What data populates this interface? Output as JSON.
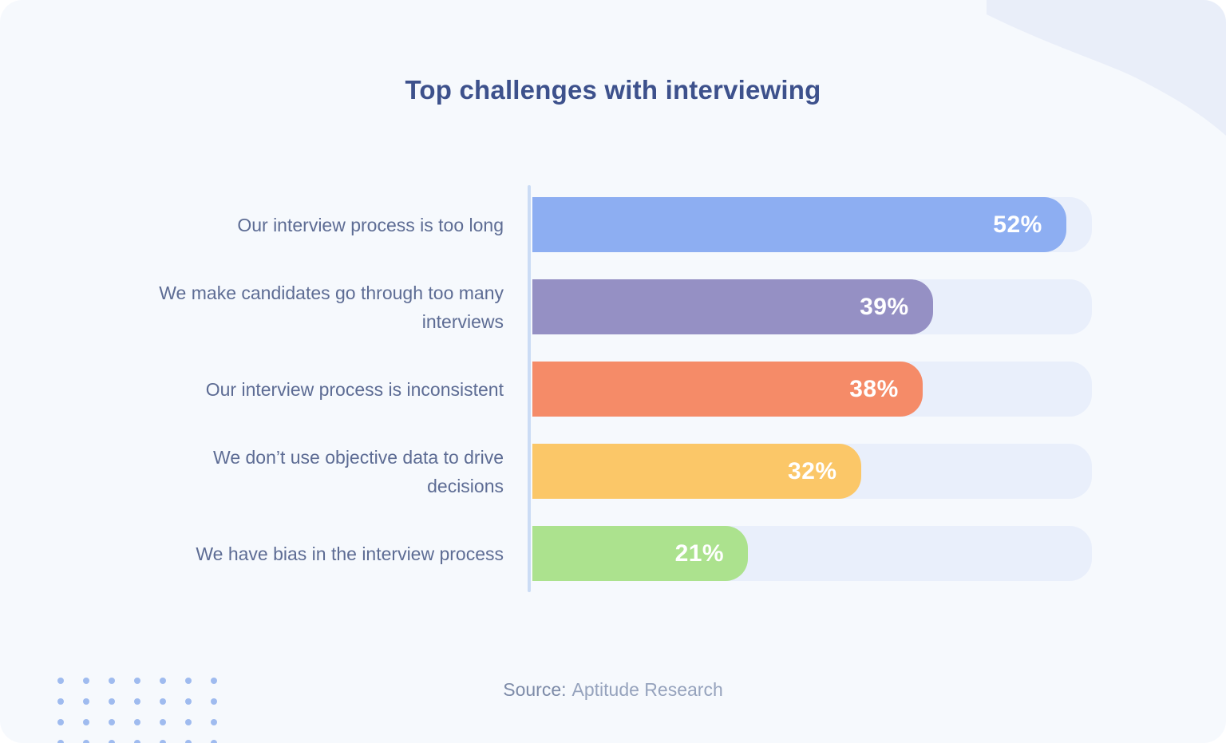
{
  "chart_data": {
    "type": "bar",
    "orientation": "horizontal",
    "title": "Top challenges with interviewing",
    "categories": [
      "Our interview process is too long",
      "We make candidates go through too many interviews",
      "Our interview process is inconsistent",
      "We don’t use objective data to drive decisions",
      "We have bias in the interview process"
    ],
    "values": [
      52,
      39,
      38,
      32,
      21
    ],
    "value_labels": [
      "52%",
      "39%",
      "38%",
      "32%",
      "21%"
    ],
    "unit": "%",
    "xlim": [
      0,
      54.5
    ],
    "grid": false,
    "legend": false,
    "bar_colors": [
      "#8DAEF2",
      "#9590C4",
      "#F58B68",
      "#FBC768",
      "#ACE28E"
    ],
    "track_color": "#E9EFFB",
    "value_label_color": "#FFFFFF"
  },
  "source": {
    "label": "Source:",
    "value": "Aptitude Research"
  },
  "theme": {
    "card_background": "#F6F9FD",
    "title_color": "#3D518C",
    "category_label_color": "#5D6C94",
    "axis_line_color": "#CBDCF5",
    "wave_color": "#E9EEF9",
    "dot_color": "#9FBBEF"
  }
}
